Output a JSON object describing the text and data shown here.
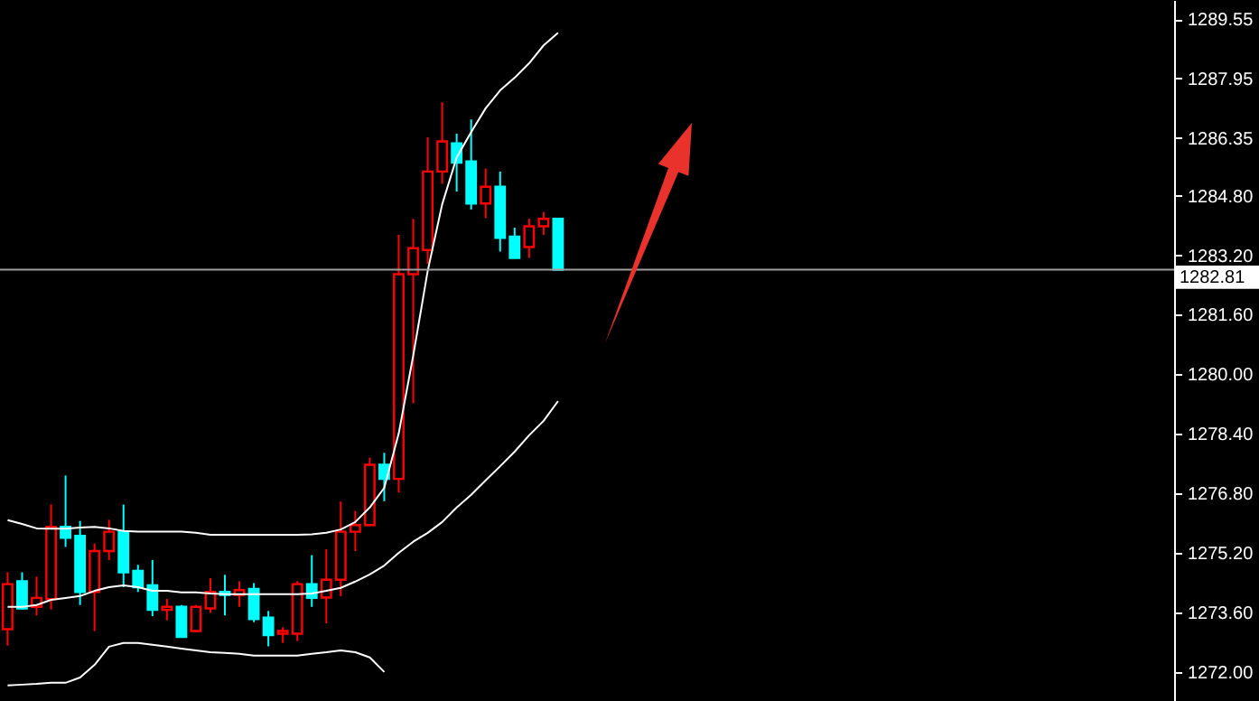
{
  "chart_data": {
    "type": "candlestick",
    "categories": [
      null,
      null,
      null,
      null,
      null,
      null,
      null,
      null,
      null,
      null,
      null,
      null,
      null,
      null,
      null,
      null,
      null,
      null,
      null,
      null,
      null,
      null,
      null,
      null,
      null,
      null,
      null,
      null,
      null,
      null,
      null,
      null,
      null,
      null,
      null,
      null,
      null,
      null,
      null,
      null,
      null,
      null,
      null,
      null,
      null,
      null,
      null,
      null,
      null,
      null,
      null,
      null,
      null,
      null,
      null,
      null,
      null,
      null,
      null,
      null,
      null,
      null,
      null,
      null,
      null,
      null,
      null,
      null,
      null,
      null,
      null,
      null,
      null,
      null,
      null,
      null,
      null,
      null,
      null,
      null,
      null
    ],
    "ohlc": [
      [
        1273.15,
        1274.68,
        1272.71,
        1274.36
      ],
      [
        1274.44,
        1274.68,
        1273.68,
        1273.71
      ],
      [
        1273.75,
        1274.56,
        1273.52,
        1273.99
      ],
      [
        1273.96,
        1276.5,
        1273.68,
        1275.9
      ],
      [
        1275.9,
        1277.28,
        1275.36,
        1275.61
      ],
      [
        1275.66,
        1276.06,
        1273.8,
        1274.15
      ],
      [
        1274.15,
        1275.45,
        1273.1,
        1275.25
      ],
      [
        1275.25,
        1276.09,
        1275.01,
        1275.77
      ],
      [
        1275.77,
        1276.5,
        1274.28,
        1274.68
      ],
      [
        1274.72,
        1274.88,
        1274.15,
        1274.28
      ],
      [
        1274.33,
        1275.01,
        1273.5,
        1273.67
      ],
      [
        1273.67,
        1273.96,
        1273.39,
        1273.75
      ],
      [
        1273.75,
        1273.8,
        1272.94,
        1272.94
      ],
      [
        1273.1,
        1273.8,
        1273.07,
        1273.75
      ],
      [
        1273.71,
        1274.52,
        1273.59,
        1274.15
      ],
      [
        1274.15,
        1274.61,
        1273.52,
        1274.07
      ],
      [
        1274.07,
        1274.44,
        1273.75,
        1274.2
      ],
      [
        1274.23,
        1274.39,
        1273.34,
        1273.42
      ],
      [
        1273.46,
        1273.64,
        1272.69,
        1272.99
      ],
      [
        1273.03,
        1273.2,
        1272.78,
        1273.1
      ],
      [
        1273.03,
        1274.44,
        1272.83,
        1274.36
      ],
      [
        1274.36,
        1275.14,
        1273.75,
        1273.99
      ],
      [
        1274,
        1275.3,
        1273.31,
        1274.48
      ],
      [
        1274.48,
        1276.58,
        1274.04,
        1275.77
      ],
      [
        1275.77,
        1276.33,
        1275.25,
        1275.95
      ],
      [
        1275.95,
        1277.76,
        1275.95,
        1277.57
      ],
      [
        1277.57,
        1277.89,
        1276.59,
        1277.19
      ],
      [
        1277.19,
        1283.75,
        1276.82,
        1282.69
      ],
      [
        1282.69,
        1284.18,
        1279.22,
        1283.39
      ],
      [
        1283.34,
        1286.37,
        1282.97,
        1285.45
      ],
      [
        1285.45,
        1287.31,
        1285.12,
        1286.26
      ],
      [
        1286.21,
        1286.47,
        1284.91,
        1285.69
      ],
      [
        1285.72,
        1286.85,
        1284.43,
        1284.59
      ],
      [
        1284.59,
        1285.53,
        1284.2,
        1285.04
      ],
      [
        1285.04,
        1285.45,
        1283.3,
        1283.67
      ],
      [
        1283.7,
        1283.94,
        1283.13,
        1283.13
      ],
      [
        1283.42,
        1284.18,
        1283.13,
        1283.98
      ],
      [
        1283.98,
        1284.36,
        1283.75,
        1284.18
      ],
      [
        1284.18,
        1284.18,
        1282.81,
        1282.81
      ],
      null,
      null,
      null,
      null,
      null,
      null,
      null,
      null,
      null,
      null,
      null,
      null,
      null,
      null,
      null,
      null,
      null,
      null,
      null,
      null,
      null,
      null,
      null,
      null,
      null,
      null,
      null,
      null,
      null,
      null,
      null,
      null,
      null,
      null,
      null,
      null,
      null,
      null,
      null,
      null,
      null,
      null
    ],
    "colors": [
      "#ff0000",
      "#00ffff",
      "#ff0000",
      "#ff0000",
      "#00ffff",
      "#00ffff",
      "#ff0000",
      "#ff0000",
      "#00ffff",
      "#00ffff",
      "#00ffff",
      "#ff0000",
      "#00ffff",
      "#ff0000",
      "#ff0000",
      "#00ffff",
      "#ff0000",
      "#00ffff",
      "#00ffff",
      "#ff0000",
      "#ff0000",
      "#00ffff",
      "#ff0000",
      "#ff0000",
      "#ff0000",
      "#ff0000",
      "#00ffff",
      "#ff0000",
      "#ff0000",
      "#ff0000",
      "#ff0000",
      "#00ffff",
      "#00ffff",
      "#ff0000",
      "#00ffff",
      "#00ffff",
      "#ff0000",
      "#ff0000",
      "#00ffff",
      null,
      null,
      null,
      null,
      null,
      null,
      null,
      null,
      null,
      null,
      null,
      null,
      null,
      null,
      null,
      null,
      null,
      null,
      null,
      null,
      null,
      null,
      null,
      null,
      null,
      null,
      null,
      null,
      null,
      null,
      null,
      null,
      null,
      null,
      null,
      null,
      null,
      null,
      null,
      null,
      null,
      null
    ],
    "series": [
      {
        "type": "line",
        "color": "#ffffff",
        "values": [
          1276.08,
          1275.98,
          1275.86,
          1275.85,
          1275.85,
          1275.88,
          1275.9,
          1275.86,
          1275.79,
          1275.77,
          1275.77,
          1275.77,
          1275.77,
          1275.74,
          1275.69,
          1275.69,
          1275.69,
          1275.69,
          1275.69,
          1275.69,
          1275.69,
          1275.7,
          1275.74,
          1275.83,
          1276.03,
          1276.42,
          1276.95,
          1278.41,
          1280.5,
          1282.78,
          1284.57,
          1285.83,
          1286.51,
          1287.15,
          1287.63,
          1287.97,
          1288.36,
          1288.84,
          1289.18,
          null,
          null,
          null,
          null,
          null,
          null,
          null,
          null,
          null,
          null,
          null,
          null,
          null,
          null,
          null,
          null,
          null,
          null,
          null,
          null,
          null,
          null,
          null,
          null,
          null,
          null,
          null,
          null,
          null,
          null,
          null,
          null,
          null,
          null,
          null,
          null,
          null,
          null,
          null,
          null,
          null,
          null
        ]
      },
      {
        "type": "line",
        "color": "#ffffff",
        "values": [
          1273.75,
          1273.75,
          1273.8,
          1273.94,
          1273.99,
          1274.04,
          1274.18,
          1274.28,
          1274.33,
          1274.28,
          1274.18,
          1274.18,
          1274.14,
          1274.14,
          1274.11,
          1274.09,
          1274.09,
          1274.09,
          1274.09,
          1274.09,
          1274.09,
          1274.11,
          1274.18,
          1274.26,
          1274.43,
          1274.62,
          1274.86,
          1275.2,
          1275.5,
          1275.74,
          1276.03,
          1276.42,
          1276.76,
          1277.15,
          1277.53,
          1277.92,
          1278.36,
          1278.75,
          1279.28,
          null,
          null,
          null,
          null,
          null,
          null,
          null,
          null,
          null,
          null,
          null,
          null,
          null,
          null,
          null,
          null,
          null,
          null,
          null,
          null,
          null,
          null,
          null,
          null,
          null,
          null,
          null,
          null,
          null,
          null,
          null,
          null,
          null,
          null,
          null,
          null,
          null,
          null,
          null,
          null,
          null,
          null
        ]
      },
      {
        "type": "line",
        "color": "#ffffff",
        "values": [
          1271.64,
          1271.66,
          1271.68,
          1271.71,
          1271.71,
          1271.85,
          1272.19,
          1272.68,
          1272.78,
          1272.78,
          1272.73,
          1272.68,
          1272.63,
          1272.58,
          1272.53,
          1272.51,
          1272.49,
          1272.44,
          1272.44,
          1272.44,
          1272.44,
          1272.49,
          1272.53,
          1272.58,
          1272.53,
          1272.39,
          1272,
          null,
          null,
          null,
          null,
          null,
          null,
          null,
          null,
          null,
          null,
          null,
          null,
          null,
          null,
          null,
          null,
          null,
          null,
          null,
          null,
          null,
          null,
          null,
          null,
          null,
          null,
          null,
          null,
          null,
          null,
          null,
          null,
          null,
          null,
          null,
          null,
          null,
          null,
          null,
          null,
          null,
          null,
          null,
          null,
          null,
          null,
          null,
          null,
          null,
          null,
          null,
          null,
          null,
          null
        ]
      }
    ],
    "ylim": [
      1271.22,
      1290.06
    ],
    "yticks": [
      1289.55,
      1287.95,
      1286.35,
      {
        "value": 1284.8,
        "label": "1284.80"
      },
      {
        "value": 1283.2,
        "label": "1283.20"
      },
      {
        "value": 1281.6,
        "label": "1281.60"
      },
      {
        "value": 1280,
        "label": "1280.00"
      },
      {
        "value": 1278.4,
        "label": "1278.40"
      },
      {
        "value": 1276.8,
        "label": "1276.80"
      },
      {
        "value": 1275.2,
        "label": "1275.20"
      },
      {
        "value": 1273.6,
        "label": "1273.60"
      },
      {
        "value": 1272,
        "label": "1272.00"
      }
    ],
    "tick_labels": "y",
    "ref_lines": [
      {
        "axis": "y",
        "value": 1282.81,
        "label": "1282.81",
        "color": "#a0a0a0"
      }
    ]
  }
}
